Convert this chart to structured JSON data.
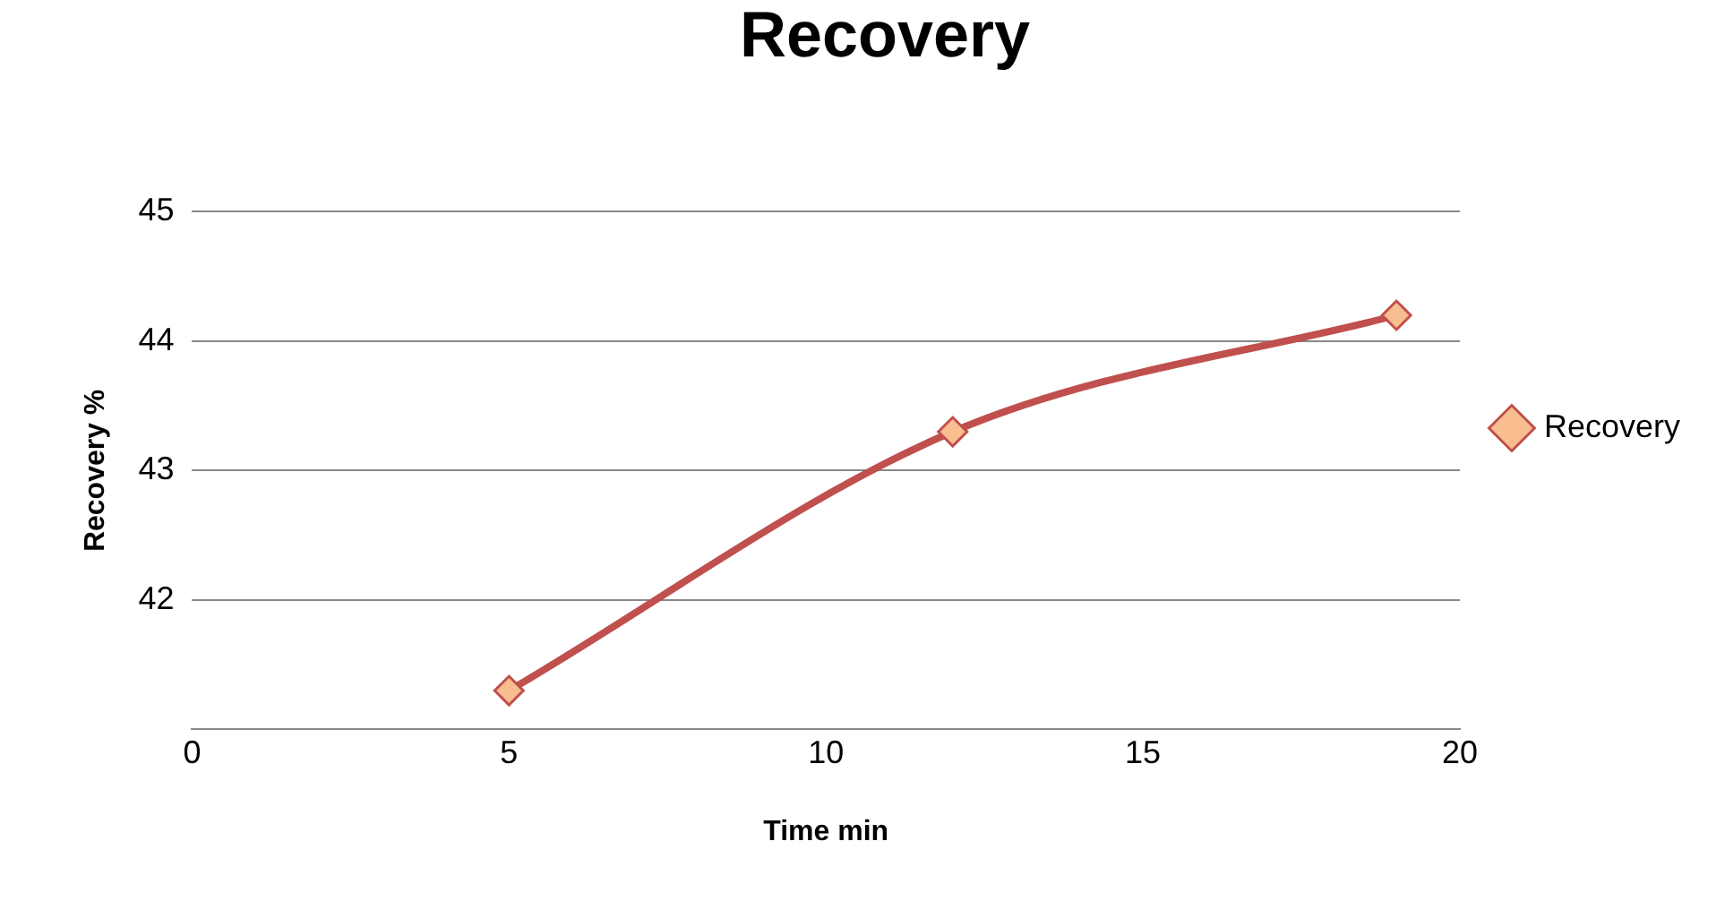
{
  "chart_data": {
    "type": "line",
    "title": "Recovery",
    "xlabel": "Time min",
    "ylabel": "Recovery %",
    "series": [
      {
        "name": "Recovery",
        "color": "#c0504d",
        "x": [
          5,
          12,
          19
        ],
        "values": [
          41.3,
          43.3,
          44.2
        ]
      }
    ],
    "xlim": [
      0,
      20
    ],
    "xticks": [
      0,
      5,
      10,
      15,
      20
    ],
    "ylim": [
      41,
      45
    ],
    "yticks": [
      {
        "value": 41,
        "label": null
      },
      42,
      43,
      44,
      45
    ],
    "grid": "y",
    "legend": "right",
    "marker": "diamond",
    "line_style": "solid"
  }
}
